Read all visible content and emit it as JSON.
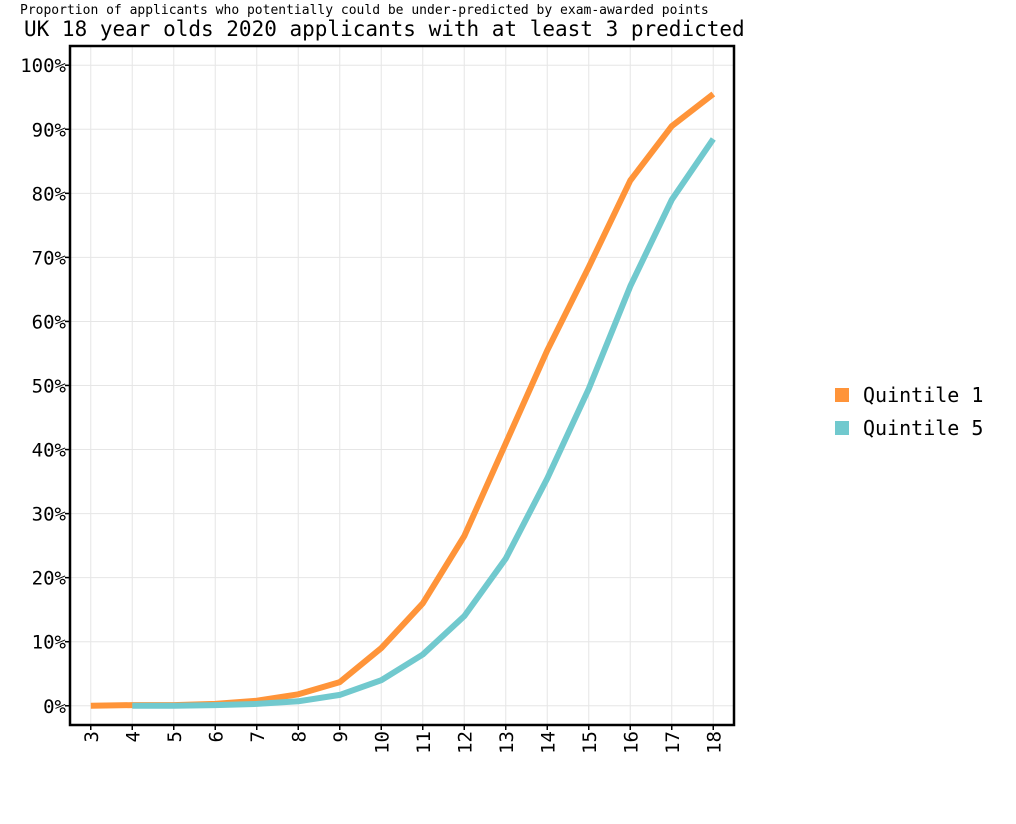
{
  "chart_data": {
    "type": "line",
    "title": "UK 18 year olds 2020 applicants with at least 3 predicted",
    "subtitle": "Proportion of applicants who potentially could be under-predicted by exam-awarded points",
    "xlabel": "",
    "ylabel": "",
    "x_ticks": [
      "3",
      "4",
      "5",
      "6",
      "7",
      "8",
      "9",
      "10",
      "11",
      "12",
      "13",
      "14",
      "15",
      "16",
      "17",
      "18"
    ],
    "y_ticks": [
      "0%",
      "10%",
      "20%",
      "30%",
      "40%",
      "50%",
      "60%",
      "70%",
      "80%",
      "90%",
      "100%"
    ],
    "xlim": [
      2.5,
      18.5
    ],
    "ylim": [
      -3,
      103
    ],
    "grid": true,
    "legend_position": "right",
    "series": [
      {
        "name": "Quintile 1",
        "color": "#FF9439",
        "x": [
          3,
          4,
          5,
          6,
          7,
          8,
          9,
          10,
          11,
          12,
          13,
          14,
          15,
          16,
          17,
          18
        ],
        "y": [
          0,
          0.1,
          0.1,
          0.3,
          0.8,
          1.8,
          3.7,
          9,
          16,
          26.5,
          41,
          55.5,
          68.5,
          82,
          90.5,
          95.5
        ]
      },
      {
        "name": "Quintile 5",
        "color": "#71C9CE",
        "x": [
          4,
          5,
          6,
          7,
          8,
          9,
          10,
          11,
          12,
          13,
          14,
          15,
          16,
          17,
          18
        ],
        "y": [
          0,
          0,
          0.1,
          0.3,
          0.7,
          1.7,
          4,
          8,
          14,
          23,
          35.5,
          49.5,
          65.5,
          79,
          88.5
        ]
      }
    ]
  }
}
